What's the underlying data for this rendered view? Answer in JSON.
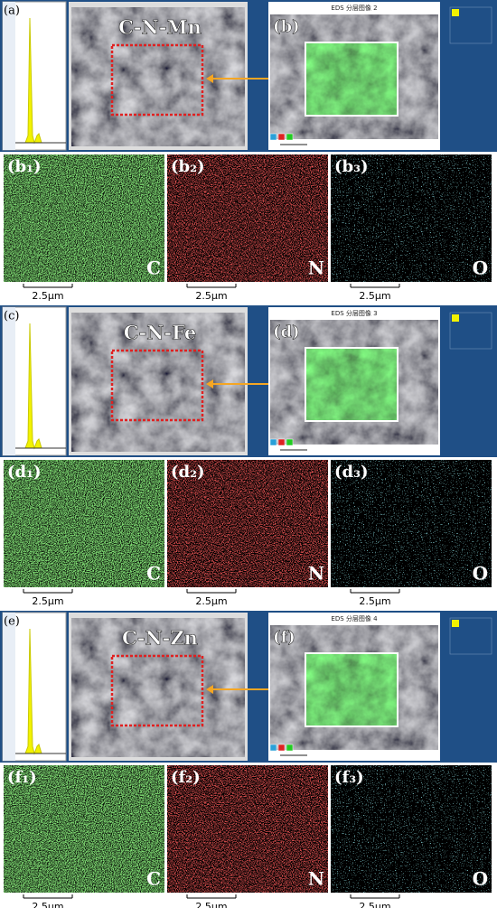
{
  "groups": [
    {
      "spectrum_label": "(a)",
      "title": "C-N-Mn",
      "map_label": "(b)",
      "map_header": "EDS 分层图像 2",
      "maps": [
        {
          "label": "(b₁)",
          "element": "C",
          "scale": "2.5μm"
        },
        {
          "label": "(b₂)",
          "element": "N",
          "scale": "2.5μm"
        },
        {
          "label": "(b₃)",
          "element": "O",
          "scale": "2.5μm"
        }
      ]
    },
    {
      "spectrum_label": "(c)",
      "title": "C-N-Fe",
      "map_label": "(d)",
      "map_header": "EDS 分层图像 3",
      "maps": [
        {
          "label": "(d₁)",
          "element": "C",
          "scale": "2.5μm"
        },
        {
          "label": "(d₂)",
          "element": "N",
          "scale": "2.5μm"
        },
        {
          "label": "(d₃)",
          "element": "O",
          "scale": "2.5μm"
        }
      ]
    },
    {
      "spectrum_label": "(e)",
      "title": "C-N-Zn",
      "map_label": "(f)",
      "map_header": "EDS 分层图像 4",
      "maps": [
        {
          "label": "(f₁)",
          "element": "C",
          "scale": "2.5μm"
        },
        {
          "label": "(f₂)",
          "element": "N",
          "scale": "2.5μm"
        },
        {
          "label": "(f₃)",
          "element": "O",
          "scale": "2.5μm"
        }
      ]
    }
  ]
}
